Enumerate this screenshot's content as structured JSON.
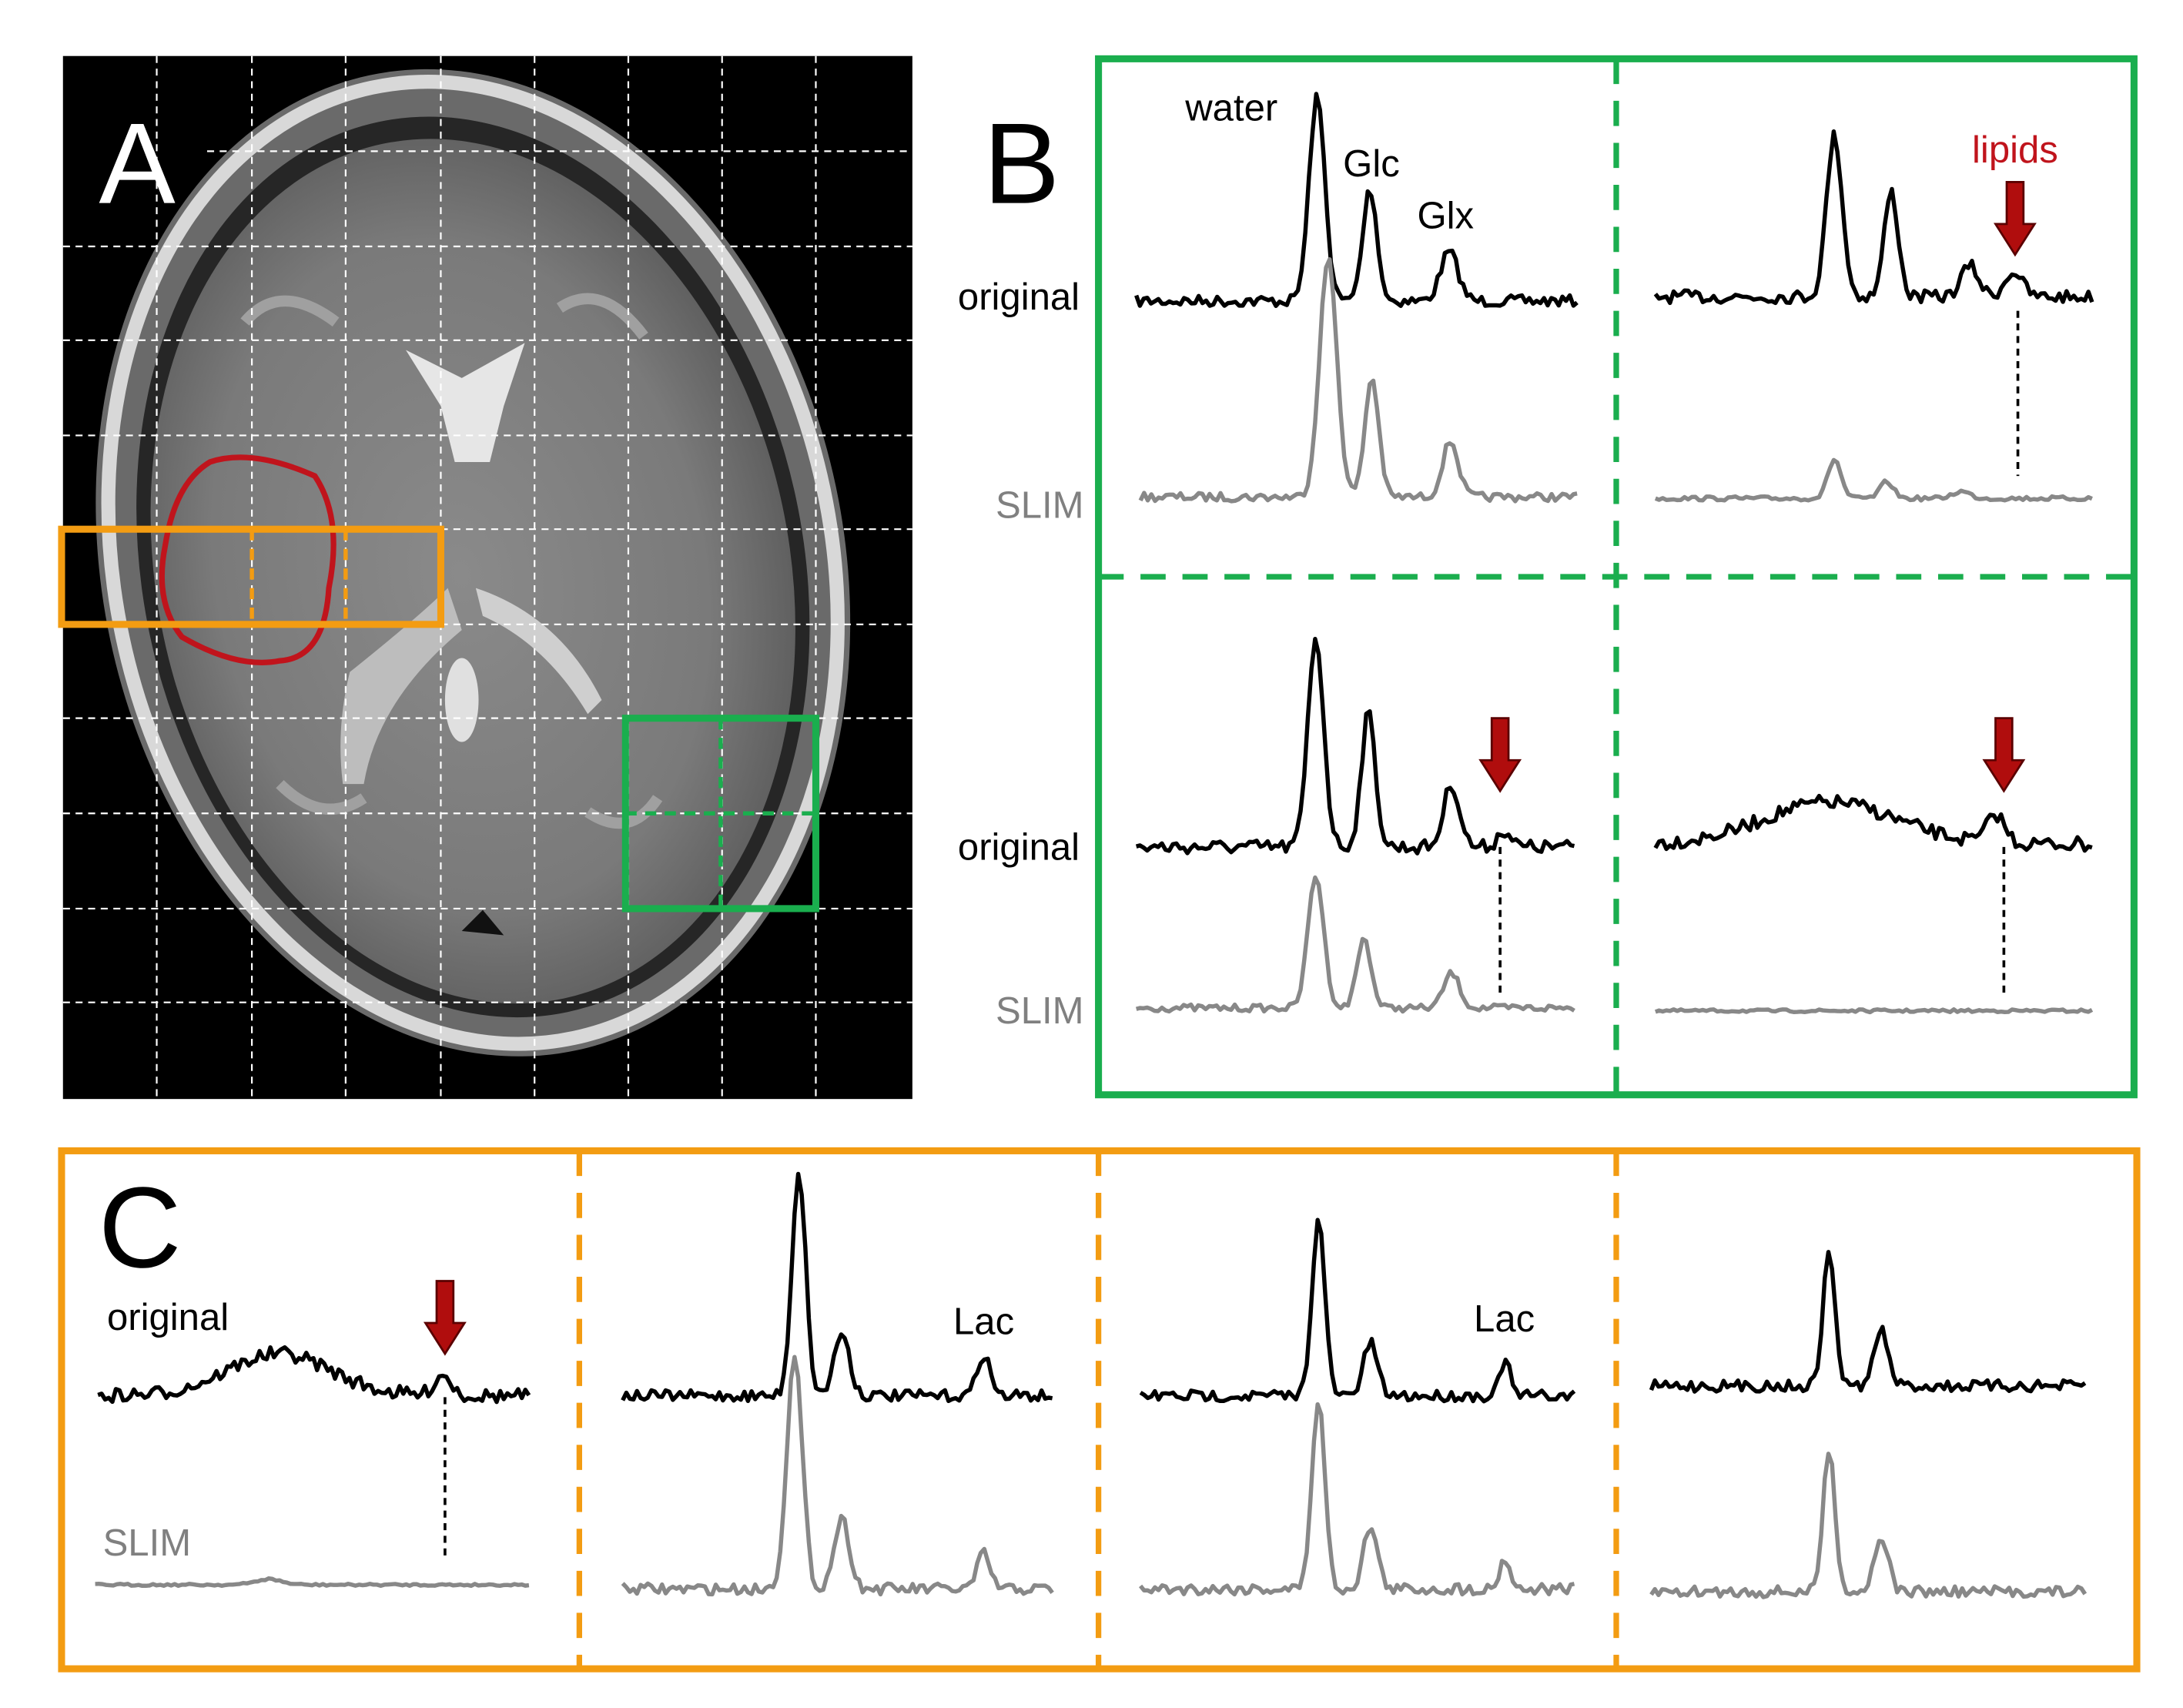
{
  "panel_a": {
    "label": "A"
  },
  "panel_b": {
    "label": "B",
    "peaks": [
      "water",
      "Glc",
      "Glx"
    ],
    "lipids": "lipids",
    "rows": [
      {
        "original": "original",
        "slim": "SLIM"
      },
      {
        "original": "original",
        "slim": "SLIM"
      }
    ]
  },
  "panel_c": {
    "label": "C",
    "original": "original",
    "slim": "SLIM",
    "lac": [
      "Lac",
      "Lac"
    ]
  }
}
